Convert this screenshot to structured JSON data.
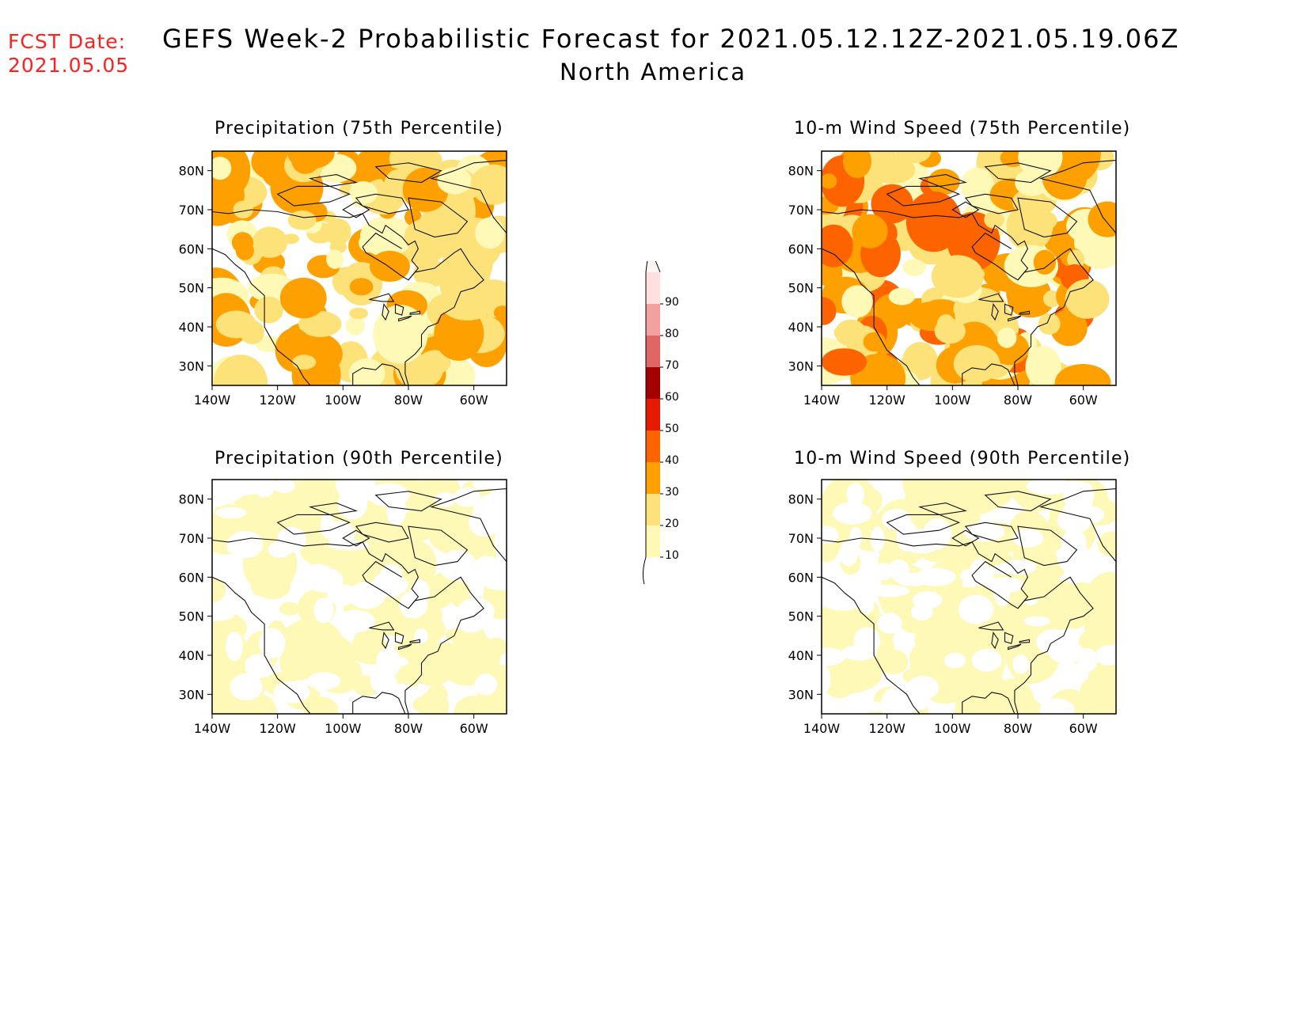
{
  "header": {
    "fcst_label": "FCST Date:",
    "fcst_date": "2021.05.05",
    "title": "GEFS Week-2 Probabilistic Forecast for 2021.05.12.12Z-2021.05.19.06Z",
    "subtitle": "North America"
  },
  "panels": [
    {
      "id": "precip75",
      "title": "Precipitation (75th Percentile)",
      "intensity": 2.6,
      "seed": 11
    },
    {
      "id": "wind75",
      "title": "10-m Wind Speed (75th Percentile)",
      "intensity": 3.0,
      "seed": 23
    },
    {
      "id": "precip90",
      "title": "Precipitation (90th Percentile)",
      "intensity": 0.9,
      "seed": 37
    },
    {
      "id": "wind90",
      "title": "10-m Wind Speed (90th Percentile)",
      "intensity": 0.9,
      "seed": 53
    }
  ],
  "axes": {
    "lat_labels": [
      "80N",
      "70N",
      "60N",
      "50N",
      "40N",
      "30N"
    ],
    "lon_labels": [
      "140W",
      "120W",
      "100W",
      "80W",
      "60W"
    ],
    "lat_values": [
      80,
      70,
      60,
      50,
      40,
      30
    ],
    "lon_values": [
      -140,
      -120,
      -100,
      -80,
      -60
    ],
    "lat_range": [
      25,
      85
    ],
    "lon_range": [
      -140,
      -50
    ]
  },
  "colorbar": {
    "levels": [
      "10",
      "20",
      "30",
      "40",
      "50",
      "60",
      "70",
      "80",
      "90"
    ],
    "colors": [
      "#fff9b8",
      "#fde27a",
      "#fda000",
      "#fd6400",
      "#e61a00",
      "#a30000",
      "#e06666",
      "#f2a0a0",
      "#ffe0e0"
    ]
  }
}
